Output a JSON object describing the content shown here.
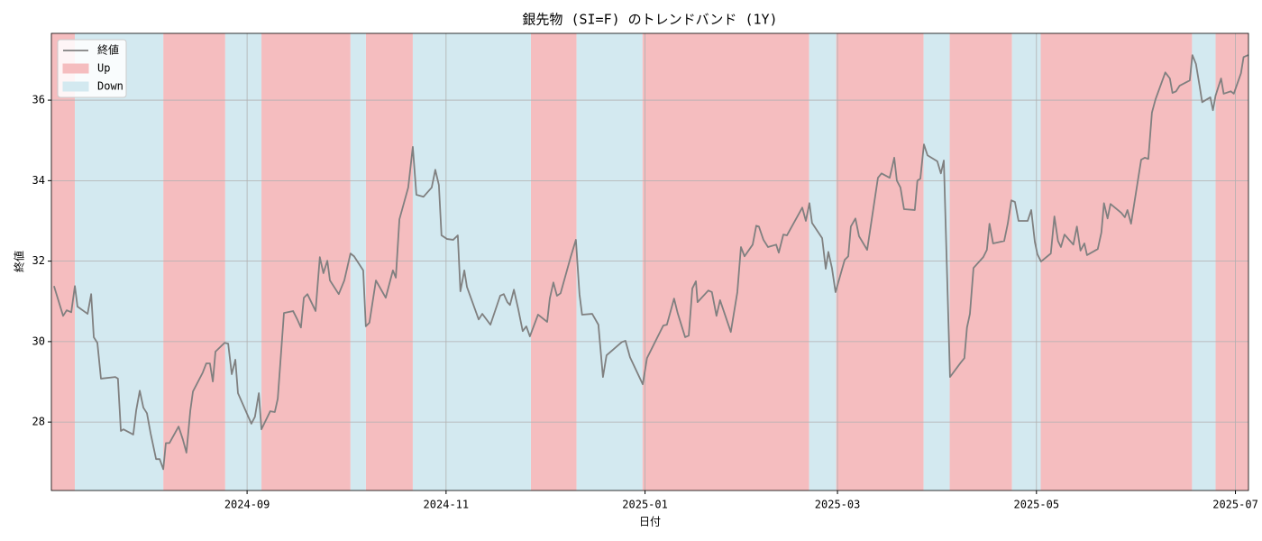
{
  "chart_data": {
    "type": "line",
    "title": "銀先物 (SI=F) のトレンドバンド (1Y)",
    "x_label": "日付",
    "y_label": "終値",
    "xlim": [
      0,
      367
    ],
    "ylim": [
      26.3,
      37.66
    ],
    "xticks": [
      {
        "value": 60,
        "label": "2024-09"
      },
      {
        "value": 121,
        "label": "2024-11"
      },
      {
        "value": 182,
        "label": "2025-01"
      },
      {
        "value": 241,
        "label": "2025-03"
      },
      {
        "value": 302,
        "label": "2025-05"
      },
      {
        "value": 363,
        "label": "2025-07"
      }
    ],
    "yticks": [
      28,
      30,
      32,
      34,
      36
    ],
    "grid": true,
    "legend": "upper left",
    "x": [
      0.8,
      3.6,
      4.7,
      6.1,
      7.2,
      8.0,
      11.1,
      12.2,
      13.0,
      14.1,
      15.2,
      19.6,
      20.4,
      21.3,
      22.1,
      25.1,
      26.0,
      27.1,
      28.2,
      29.3,
      30.4,
      32.1,
      33.2,
      34.3,
      35.1,
      36.2,
      39.0,
      40.3,
      41.4,
      42.6,
      43.4,
      46.4,
      47.5,
      48.6,
      49.5,
      50.3,
      53.1,
      54.2,
      55.3,
      56.4,
      57.2,
      61.3,
      62.4,
      63.6,
      64.4,
      67.1,
      68.5,
      69.4,
      71.3,
      74.1,
      75.4,
      76.5,
      77.4,
      78.5,
      81.0,
      82.3,
      83.4,
      84.6,
      85.4,
      88.1,
      89.8,
      91.7,
      92.8,
      95.6,
      96.4,
      97.5,
      99.5,
      102.5,
      104.7,
      105.6,
      106.7,
      109.4,
      110.8,
      111.9,
      114.1,
      116.6,
      117.7,
      118.8,
      119.6,
      121.3,
      123.2,
      124.6,
      125.4,
      126.6,
      127.4,
      131.0,
      132.1,
      134.6,
      137.6,
      138.7,
      139.8,
      140.6,
      141.8,
      143.1,
      144.5,
      145.6,
      146.7,
      149.2,
      152.0,
      152.8,
      153.9,
      155.0,
      156.1,
      159.2,
      160.8,
      161.9,
      162.7,
      165.8,
      167.7,
      169.1,
      170.2,
      174.9,
      176.0,
      177.4,
      181.3,
      182.6,
      187.6,
      188.7,
      190.9,
      192.0,
      194.3,
      195.4,
      196.5,
      197.6,
      198.1,
      201.4,
      202.5,
      203.9,
      205.0,
      208.3,
      210.3,
      211.4,
      212.5,
      215.0,
      216.1,
      216.9,
      218.3,
      219.7,
      222.2,
      223.0,
      224.4,
      225.5,
      230.2,
      231.3,
      232.4,
      233.2,
      236.3,
      237.4,
      238.2,
      239.3,
      240.4,
      243.2,
      244.3,
      245.1,
      246.5,
      247.6,
      250.1,
      253.4,
      254.5,
      257.0,
      258.4,
      259.2,
      260.3,
      261.4,
      264.7,
      265.5,
      266.4,
      267.5,
      268.6,
      271.6,
      272.7,
      273.6,
      275.5,
      278.8,
      279.9,
      280.7,
      281.6,
      282.7,
      285.7,
      286.8,
      287.6,
      288.7,
      292.1,
      293.2,
      294.3,
      295.4,
      296.5,
      299.3,
      300.4,
      301.5,
      302.3,
      303.4,
      306.4,
      307.5,
      308.6,
      309.5,
      310.6,
      313.3,
      314.4,
      315.5,
      316.7,
      317.5,
      320.8,
      321.9,
      322.7,
      323.8,
      324.7,
      328.0,
      329.1,
      329.9,
      331.0,
      334.1,
      335.2,
      336.3,
      337.4,
      338.5,
      341.5,
      342.9,
      343.7,
      344.8,
      345.9,
      349.0,
      349.8,
      350.9,
      352.0,
      352.8,
      355.3,
      356.1,
      356.9,
      358.6,
      359.4,
      361.6,
      362.5,
      364.7,
      365.5,
      366.9
    ],
    "series": [
      {
        "name": "終値",
        "color": "#808080",
        "values": [
          31.38,
          30.64,
          30.78,
          30.73,
          31.38,
          30.87,
          30.69,
          31.18,
          30.11,
          29.97,
          29.08,
          29.12,
          29.08,
          27.78,
          27.82,
          27.69,
          28.29,
          28.78,
          28.36,
          28.22,
          27.73,
          27.08,
          27.08,
          26.83,
          27.48,
          27.48,
          27.89,
          27.57,
          27.24,
          28.29,
          28.76,
          29.23,
          29.46,
          29.46,
          29.01,
          29.75,
          29.97,
          29.95,
          29.19,
          29.55,
          28.72,
          27.96,
          28.13,
          28.72,
          27.82,
          28.27,
          28.25,
          28.58,
          30.71,
          30.76,
          30.55,
          30.35,
          31.09,
          31.18,
          30.76,
          32.1,
          31.7,
          32.01,
          31.52,
          31.18,
          31.52,
          32.19,
          32.12,
          31.77,
          30.38,
          30.47,
          31.52,
          31.09,
          31.77,
          31.59,
          33.04,
          33.83,
          34.84,
          33.65,
          33.6,
          33.83,
          34.27,
          33.89,
          32.64,
          32.55,
          32.53,
          32.64,
          31.25,
          31.77,
          31.36,
          30.55,
          30.69,
          30.42,
          31.14,
          31.18,
          30.98,
          30.91,
          31.29,
          30.82,
          30.26,
          30.38,
          30.13,
          30.67,
          30.49,
          31.07,
          31.47,
          31.14,
          31.2,
          32.1,
          32.53,
          31.18,
          30.67,
          30.69,
          30.42,
          29.12,
          29.66,
          29.99,
          30.02,
          29.61,
          28.94,
          29.59,
          30.4,
          30.42,
          31.07,
          30.71,
          30.11,
          30.15,
          31.32,
          31.5,
          30.98,
          31.27,
          31.23,
          30.64,
          31.03,
          30.24,
          31.23,
          32.35,
          32.12,
          32.41,
          32.88,
          32.86,
          32.53,
          32.35,
          32.41,
          32.21,
          32.66,
          32.64,
          33.33,
          33.0,
          33.44,
          32.95,
          32.57,
          31.81,
          32.23,
          31.83,
          31.23,
          32.03,
          32.12,
          32.86,
          33.06,
          32.62,
          32.28,
          34.07,
          34.18,
          34.07,
          34.57,
          34.0,
          33.83,
          33.29,
          33.27,
          34.0,
          34.05,
          34.9,
          34.63,
          34.48,
          34.18,
          34.5,
          29.12,
          29.48,
          29.59,
          30.35,
          30.69,
          31.83,
          32.1,
          32.28,
          32.93,
          32.44,
          32.5,
          32.93,
          33.51,
          33.47,
          33.0,
          33.0,
          33.27,
          32.48,
          32.17,
          31.99,
          32.19,
          33.11,
          32.5,
          32.35,
          32.66,
          32.41,
          32.86,
          32.26,
          32.44,
          32.15,
          32.3,
          32.71,
          33.44,
          33.06,
          33.42,
          33.2,
          33.09,
          33.27,
          32.93,
          34.52,
          34.57,
          34.54,
          35.69,
          36.02,
          36.69,
          36.54,
          36.18,
          36.22,
          36.36,
          36.49,
          37.12,
          36.9,
          36.36,
          35.95,
          36.07,
          35.75,
          36.11,
          36.54,
          36.16,
          36.22,
          36.16,
          36.67,
          37.07,
          37.12
        ]
      }
    ],
    "bands": [
      {
        "name": "Up",
        "color": "#f5bdbf",
        "ranges": [
          [
            0,
            7.2
          ],
          [
            34.3,
            53.3
          ],
          [
            64.4,
            91.7
          ],
          [
            96.4,
            110.8
          ],
          [
            147,
            161
          ],
          [
            181.2,
            232.3
          ],
          [
            240.6,
            267.4
          ],
          [
            275.4,
            294.5
          ],
          [
            303.3,
            349.7
          ],
          [
            356.9,
            367
          ]
        ]
      },
      {
        "name": "Down",
        "color": "#d3e9f0",
        "ranges": [
          [
            7.2,
            34.3
          ],
          [
            53.3,
            64.4
          ],
          [
            91.7,
            96.4
          ],
          [
            110.8,
            147
          ],
          [
            161,
            181.2
          ],
          [
            232.3,
            240.6
          ],
          [
            267.4,
            275.4
          ],
          [
            294.5,
            303.3
          ],
          [
            349.7,
            356.9
          ]
        ]
      }
    ]
  }
}
